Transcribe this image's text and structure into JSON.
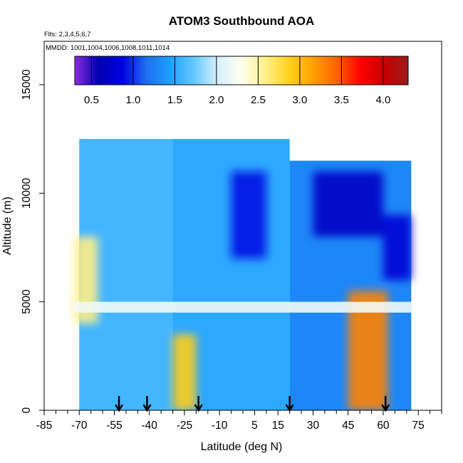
{
  "chart_data": {
    "type": "heatmap",
    "title": "ATOM3 Southbound AOA",
    "annotations": [
      "Flts: 2,3,4,5,6,7",
      "MMDD: 1001,1004,1006,1008,1011,1014"
    ],
    "xlabel": "Latitude (deg N)",
    "ylabel": "Altitude (m)",
    "xlim": [
      -85,
      85
    ],
    "ylim": [
      0,
      17000
    ],
    "x_ticks_labeled": [
      -85,
      -70,
      -55,
      -40,
      -25,
      -10,
      5,
      15,
      30,
      45,
      60,
      75
    ],
    "x_ticks_minor": [
      -80,
      -75,
      -65,
      -60,
      -50,
      -45,
      -35,
      -30,
      -20,
      -15,
      -5,
      0,
      10,
      20,
      25,
      35,
      40,
      50,
      55,
      65,
      70,
      80,
      85
    ],
    "y_ticks": [
      0,
      5000,
      10000,
      15000
    ],
    "colorbar": {
      "ticks": [
        0.5,
        1.0,
        1.5,
        2.0,
        2.5,
        3.0,
        3.5,
        4.0
      ],
      "tick_labels": [
        "0.5",
        "1.0",
        "1.5",
        "2.0",
        "2.5",
        "3.0",
        "3.5",
        "4.0"
      ],
      "range": [
        0.3,
        4.3
      ],
      "colors": [
        "#8a2be2",
        "#0000b0",
        "#0000e0",
        "#1e6ef0",
        "#1ea0ff",
        "#64c8ff",
        "#d8f0ff",
        "#fffff0",
        "#fff08c",
        "#ffd21e",
        "#ffa000",
        "#ff6400",
        "#ff0000",
        "#c80000",
        "#9b1c1c"
      ]
    },
    "grid": false,
    "profile_markers_lat": [
      -53,
      -41,
      -19,
      20,
      61
    ],
    "regions": [
      {
        "lat": [
          -70,
          -30
        ],
        "alt": [
          0,
          12500
        ],
        "value": 1.6
      },
      {
        "lat": [
          -30,
          20
        ],
        "alt": [
          0,
          12500
        ],
        "value": 1.5
      },
      {
        "lat": [
          20,
          72
        ],
        "alt": [
          0,
          11500
        ],
        "value": 1.3
      },
      {
        "lat": [
          -5,
          10
        ],
        "alt": [
          7000,
          11000
        ],
        "value": 0.9
      },
      {
        "lat": [
          30,
          60
        ],
        "alt": [
          8000,
          11000
        ],
        "value": 0.7
      },
      {
        "lat": [
          60,
          72
        ],
        "alt": [
          6000,
          9000
        ],
        "value": 0.8
      },
      {
        "lat": [
          -72,
          -62
        ],
        "alt": [
          4000,
          8000
        ],
        "value": 2.6
      },
      {
        "lat": [
          -30,
          -20
        ],
        "alt": [
          0,
          3500
        ],
        "value": 2.9
      },
      {
        "lat": [
          45,
          62
        ],
        "alt": [
          0,
          5500
        ],
        "value": 3.3
      },
      {
        "lat": [
          -72,
          72
        ],
        "alt": [
          4500,
          5000
        ],
        "value": 2.2
      }
    ]
  }
}
